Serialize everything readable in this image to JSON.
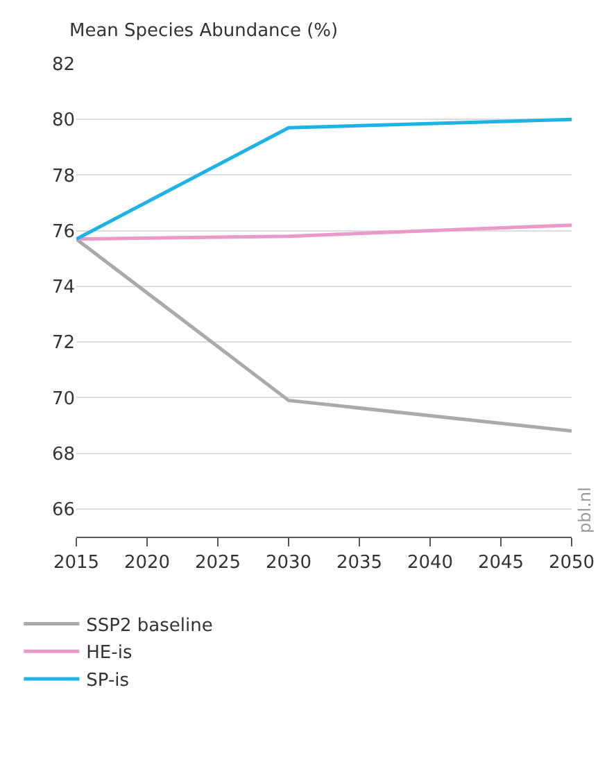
{
  "chart_data": {
    "type": "line",
    "ylabel": "Mean Species Abundance (%)",
    "x": [
      2015,
      2030,
      2050
    ],
    "series": [
      {
        "name": "SSP2 baseline",
        "color": "#aaaaaa",
        "values": [
          75.7,
          69.9,
          68.8
        ]
      },
      {
        "name": "HE-is",
        "color": "#e99ac9",
        "values": [
          75.7,
          75.8,
          76.2
        ]
      },
      {
        "name": "SP-is",
        "color": "#1fb3e5",
        "values": [
          75.7,
          79.7,
          80.0
        ]
      }
    ],
    "xlim": [
      2015,
      2050
    ],
    "xticks": [
      2015,
      2020,
      2025,
      2030,
      2035,
      2040,
      2045,
      2050
    ],
    "ylim": [
      65,
      82
    ],
    "yticks": [
      66,
      68,
      70,
      72,
      74,
      76,
      78,
      80,
      82
    ],
    "grid": "y",
    "legend": "bottom left",
    "marker": "none",
    "line_style": "solid",
    "annotations": [
      "pbl.nl"
    ]
  }
}
